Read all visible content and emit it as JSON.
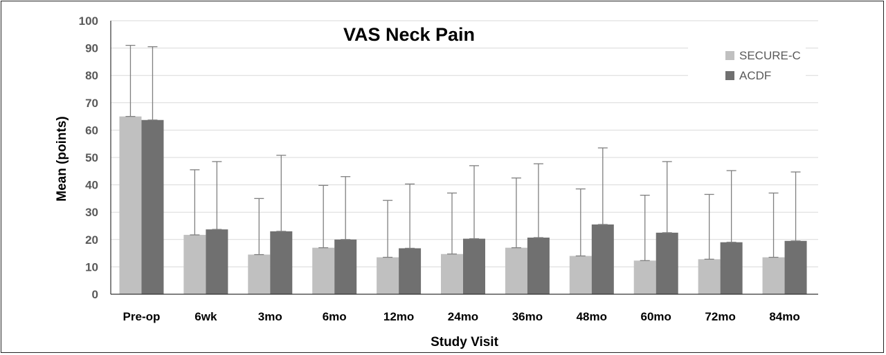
{
  "chart_data": {
    "type": "bar",
    "title": "VAS Neck Pain",
    "xlabel": "Study Visit",
    "ylabel": "Mean (points)",
    "ylim": [
      0,
      100
    ],
    "yticks": [
      0,
      10,
      20,
      30,
      40,
      50,
      60,
      70,
      80,
      90,
      100
    ],
    "grid": true,
    "legend_position": "top-right",
    "categories": [
      "Pre-op",
      "6wk",
      "3mo",
      "6mo",
      "12mo",
      "24mo",
      "36mo",
      "48mo",
      "60mo",
      "72mo",
      "84mo"
    ],
    "series": [
      {
        "name": "SECURE-C",
        "color": "#c0c0c0",
        "values": [
          65,
          21.7,
          14.5,
          17,
          13.5,
          14.7,
          17,
          14,
          12.3,
          12.8,
          13.5
        ],
        "error_upper": [
          91,
          45.5,
          35,
          39.8,
          34.3,
          37,
          42.5,
          38.5,
          36.2,
          36.5,
          37
        ]
      },
      {
        "name": "ACDF",
        "color": "#707070",
        "values": [
          63.7,
          23.7,
          23,
          20,
          16.8,
          20.3,
          20.7,
          25.5,
          22.5,
          19,
          19.5
        ],
        "error_upper": [
          90.5,
          48.5,
          50.8,
          43,
          40.3,
          47,
          47.7,
          53.5,
          48.5,
          45.2,
          44.7
        ]
      }
    ]
  }
}
